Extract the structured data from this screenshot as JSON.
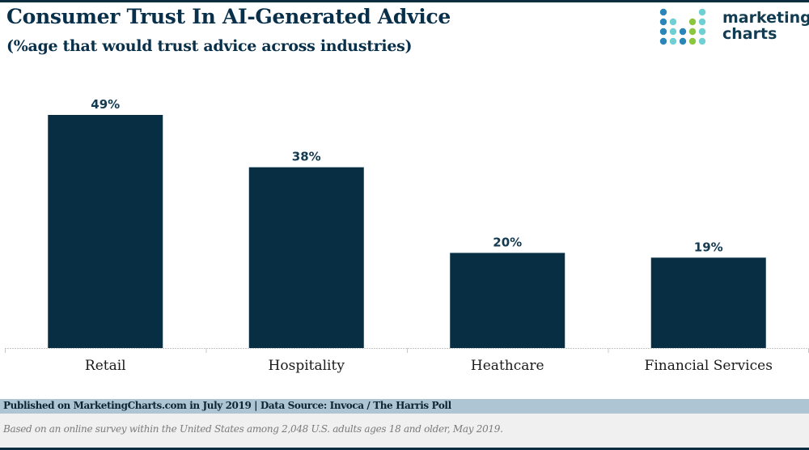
{
  "header": {
    "title": "Consumer Trust In AI-Generated Advice",
    "subtitle": "(%age that would trust advice across industries)"
  },
  "logo": {
    "line1": "marketing",
    "line2": "charts",
    "dot_colors": {
      "blue": "#2a86b8",
      "teal": "#6fd0d4",
      "green": "#8cc63e"
    }
  },
  "chart_data": {
    "type": "bar",
    "title": "Consumer Trust In AI-Generated Advice",
    "subtitle": "(%age that would trust advice across industries)",
    "categories": [
      "Retail",
      "Hospitality",
      "Heathcare",
      "Financial Services"
    ],
    "values": [
      49,
      38,
      20,
      19
    ],
    "data_labels": [
      "49%",
      "38%",
      "20%",
      "19%"
    ],
    "unit": "%",
    "xlabel": "",
    "ylabel": "",
    "ylim": [
      0,
      49
    ],
    "grid": false,
    "legend": "none",
    "bar_color": "#072e42"
  },
  "footer": {
    "published": "Published on MarketingCharts.com in July 2019 | Data Source: Invoca / The Harris Poll",
    "note": "Based on an online survey within the United States among 2,048 U.S. adults ages 18 and older, May 2019."
  }
}
